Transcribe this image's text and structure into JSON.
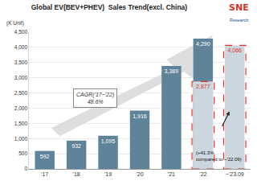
{
  "chart_data": {
    "type": "bar",
    "title": "Global EV(BEV+PHEV)  Sales Trend(excl. China)",
    "logo": "SNE",
    "logo_sub": "Research",
    "y_label": "(K Unit)",
    "categories": [
      "'17",
      "'18",
      "'19",
      "'20",
      "'21",
      "'22",
      "~'23.09"
    ],
    "series": [
      {
        "color": "#5f8399",
        "values": [
          592,
          932,
          1095,
          1916,
          3389,
          4290,
          null
        ],
        "value_labels": [
          "592",
          "932",
          "1,095",
          "1,916",
          "3,389",
          "4,290",
          null
        ]
      },
      {
        "color": "#cbd6de",
        "line_style": "dashed",
        "values": [
          null,
          null,
          null,
          null,
          null,
          2877,
          4066
        ],
        "value_labels": [
          null,
          null,
          null,
          null,
          null,
          "2,877",
          "4,066"
        ]
      }
    ],
    "ylim": [
      0,
      4500
    ],
    "yticks": [
      0,
      500,
      {
        "value": 1000,
        "label": "1,000"
      },
      {
        "value": 1500,
        "label": "1,500"
      },
      {
        "value": 2000,
        "label": "2,000"
      },
      {
        "value": 2500,
        "label": "2,500"
      },
      {
        "value": 3000,
        "label": "3,000"
      },
      {
        "value": 3500,
        "label": "3,500"
      },
      {
        "value": 4000,
        "label": "4,000"
      },
      {
        "value": 4500,
        "label": "4,500"
      }
    ],
    "grid": true,
    "data_labels": true,
    "annotations": [
      {
        "lines": [
          "CAGR('17~'22)",
          "48.6%"
        ]
      },
      {
        "lines": [
          "(+41.3%",
          "compared to ~'22.09)"
        ]
      }
    ]
  }
}
